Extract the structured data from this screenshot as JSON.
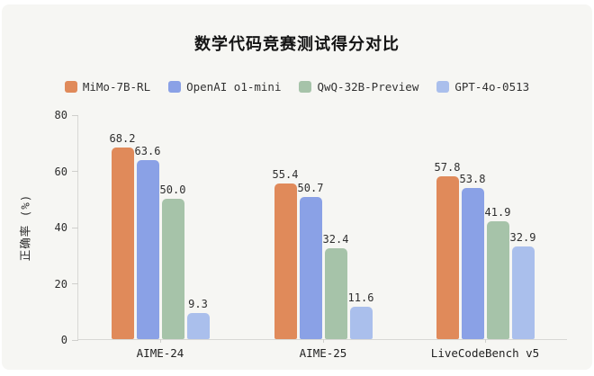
{
  "chart_data": {
    "type": "bar",
    "title": "数学代码竞赛测试得分对比",
    "xlabel": "",
    "ylabel": "正确率 (%)",
    "categories": [
      "AIME-24",
      "AIME-25",
      "LiveCodeBench v5"
    ],
    "series": [
      {
        "name": "MiMo-7B-RL",
        "color": "#e08a5a",
        "values": [
          68.2,
          55.4,
          57.8
        ]
      },
      {
        "name": "OpenAI o1-mini",
        "color": "#8aa1e6",
        "values": [
          63.6,
          50.7,
          53.8
        ]
      },
      {
        "name": "QwQ-32B-Preview",
        "color": "#a6c3a9",
        "values": [
          50.0,
          32.4,
          41.9
        ]
      },
      {
        "name": "GPT-4o-0513",
        "color": "#aabfec",
        "values": [
          9.3,
          11.6,
          32.9
        ]
      }
    ],
    "ylim": [
      0,
      80
    ],
    "yticks": [
      0,
      20,
      40,
      60,
      80
    ],
    "legend_position": "top",
    "grid": false,
    "value_labels_decimals": 1
  },
  "colors": {
    "panel_background": "#f6f6f3",
    "page_background": "#ffffff",
    "axis_line": "#d8d8d5",
    "text_dark": "#141414"
  }
}
